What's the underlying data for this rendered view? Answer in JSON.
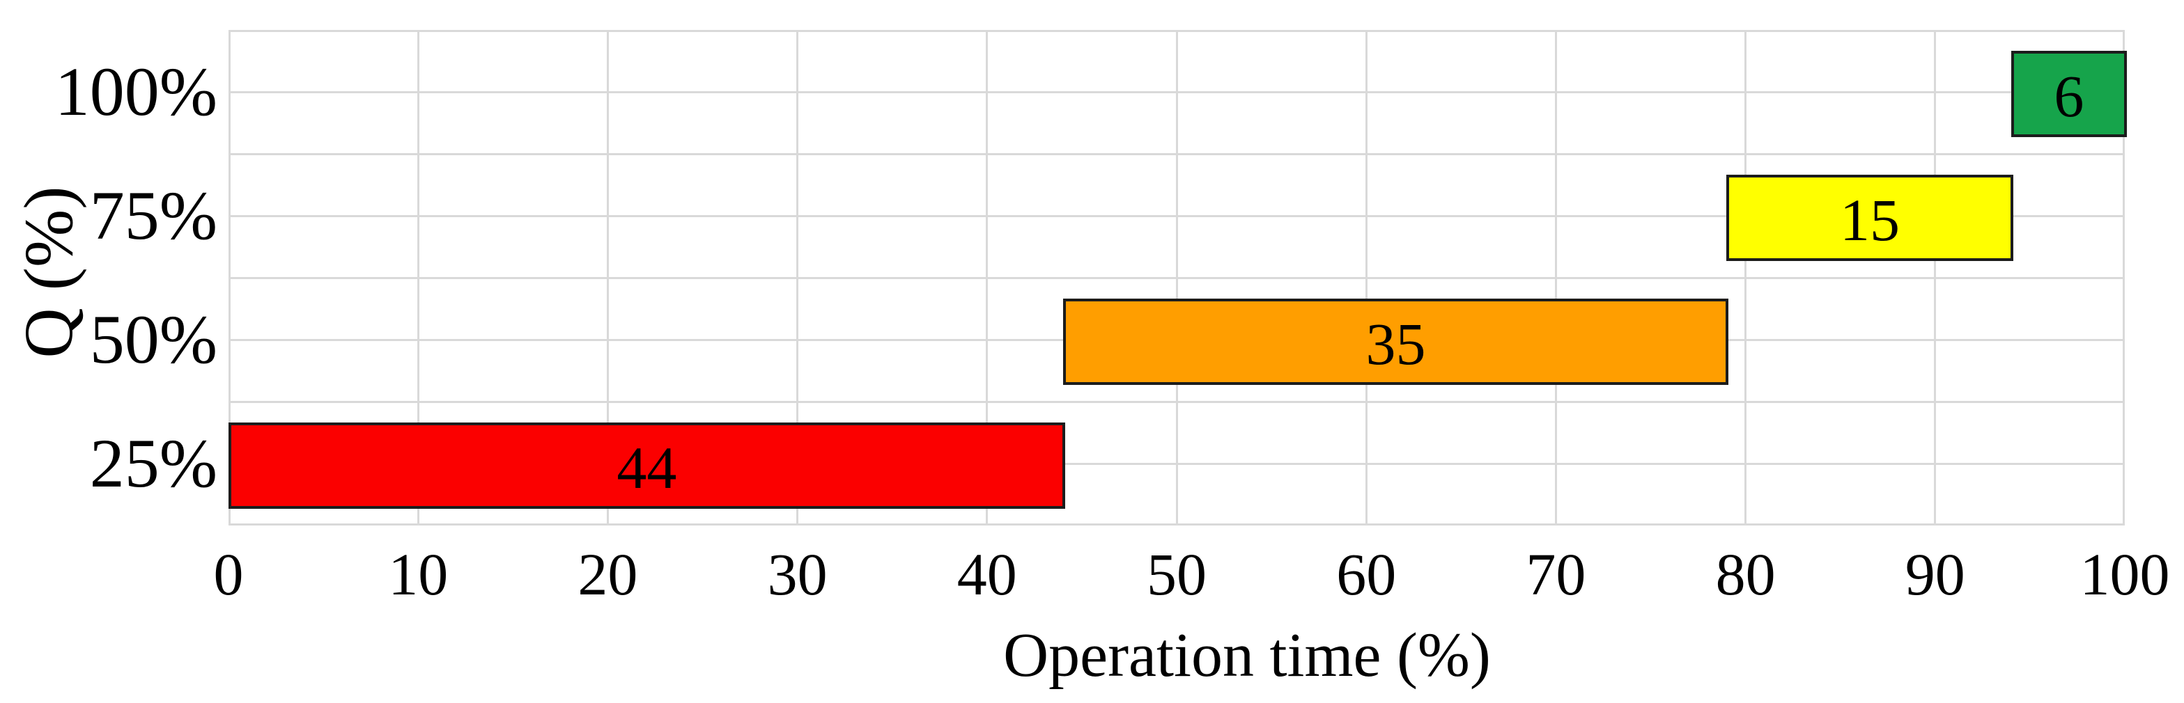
{
  "chart_data": {
    "type": "bar",
    "orientation": "horizontal",
    "xlabel": "Operation time (%)",
    "ylabel": "Q (%)",
    "xlim": [
      0,
      100
    ],
    "x_ticks": [
      0,
      10,
      20,
      30,
      40,
      50,
      60,
      70,
      80,
      90,
      100
    ],
    "categories_top_to_bottom": [
      "100%",
      "75%",
      "50%",
      "25%"
    ],
    "bars": [
      {
        "category": "100%",
        "start": 94,
        "end": 100,
        "value": 6,
        "label": "6",
        "color": "#16A44B"
      },
      {
        "category": "75%",
        "start": 79,
        "end": 94,
        "value": 15,
        "label": "15",
        "color": "#FFFF00"
      },
      {
        "category": "50%",
        "start": 44,
        "end": 79,
        "value": 35,
        "label": "35",
        "color": "#FF9E00"
      },
      {
        "category": "25%",
        "start": 0,
        "end": 44,
        "value": 44,
        "label": "44",
        "color": "#FB0000"
      }
    ],
    "grid": {
      "on": true,
      "color": "#D9D9D9",
      "vertical_step": 10,
      "horizontal_lines_per_category": 2
    },
    "bar_border_color": "#1C1C1C",
    "legend": "none",
    "title": ""
  }
}
